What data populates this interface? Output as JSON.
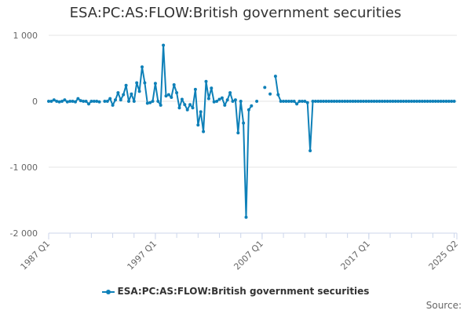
{
  "title": "ESA:PC:AS:FLOW:British government securities",
  "source_label": "Source:",
  "colors": {
    "series": "#0e80b8",
    "grid": "#e6e6e6"
  },
  "chart_data": {
    "type": "line",
    "title": "ESA:PC:AS:FLOW:British government securities",
    "xlabel": "",
    "ylabel": "",
    "ylim": [
      -2000,
      1000
    ],
    "yticks": [
      1000,
      0,
      -1000,
      -2000
    ],
    "ytick_labels": [
      "1 000",
      "0",
      "-1 000",
      "-2 000"
    ],
    "xtick_labels": [
      "1987 Q1",
      "1997 Q1",
      "2007 Q1",
      "2017 Q1",
      "2025 Q2"
    ],
    "x_start": "1987 Q1",
    "x_end": "2025 Q2",
    "grid": true,
    "legend_position": "bottom",
    "series": [
      {
        "name": "ESA:PC:AS:FLOW:British government securities",
        "values": [
          0,
          0,
          20,
          0,
          -10,
          0,
          20,
          -10,
          0,
          0,
          -10,
          40,
          10,
          0,
          0,
          -40,
          0,
          0,
          0,
          -10,
          null,
          0,
          0,
          40,
          -60,
          20,
          130,
          20,
          100,
          240,
          0,
          110,
          0,
          280,
          150,
          520,
          280,
          -30,
          -20,
          0,
          270,
          0,
          -60,
          850,
          80,
          100,
          60,
          250,
          130,
          -100,
          30,
          -50,
          -130,
          -50,
          -100,
          180,
          -360,
          -160,
          -460,
          300,
          40,
          200,
          -10,
          0,
          30,
          50,
          -60,
          20,
          130,
          0,
          20,
          -480,
          0,
          -330,
          -1760,
          -130,
          -70,
          null,
          0,
          null,
          null,
          210,
          null,
          110,
          null,
          380,
          100,
          0,
          0,
          0,
          0,
          0,
          0,
          -40,
          0,
          0,
          0,
          -20,
          -750,
          0,
          0,
          0,
          0,
          0,
          0,
          0,
          0,
          0,
          0,
          0,
          0,
          0,
          0,
          0,
          0,
          0,
          0,
          0,
          0,
          0,
          0,
          0,
          0,
          0,
          0,
          0,
          0,
          0,
          0,
          0,
          0,
          0,
          0,
          0,
          0,
          0,
          0,
          0,
          0,
          0,
          0,
          0,
          0,
          0,
          0,
          0,
          0,
          0,
          0,
          0,
          0,
          0,
          0
        ]
      }
    ]
  }
}
